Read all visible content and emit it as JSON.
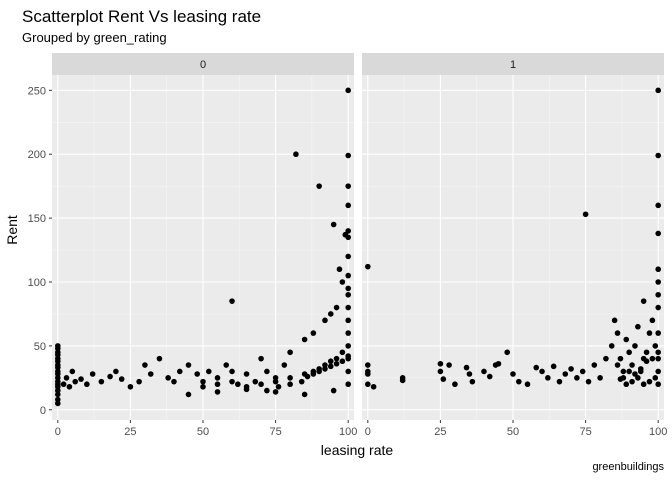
{
  "chart_data": {
    "type": "scatter",
    "title": "Scatterplot Rent Vs leasing rate",
    "subtitle": "Grouped by green_rating",
    "xlabel": "leasing rate",
    "ylabel": "Rent",
    "caption": "greenbuildings",
    "xlim": [
      -2,
      102
    ],
    "ylim": [
      -8,
      262
    ],
    "x_ticks": [
      0,
      25,
      50,
      75,
      100
    ],
    "y_ticks": [
      0,
      50,
      100,
      150,
      200,
      250
    ],
    "x_tick_labels": [
      "0",
      "25",
      "50",
      "75",
      "100"
    ],
    "y_tick_labels": [
      "0",
      "50",
      "100",
      "150",
      "200",
      "250"
    ],
    "grid": true,
    "point_color": "#000000",
    "panel_background": "#ebebeb",
    "strip_background": "#d9d9d9",
    "panels": [
      {
        "label": "0",
        "points": [
          [
            0,
            5
          ],
          [
            0,
            8
          ],
          [
            0,
            12
          ],
          [
            0,
            15
          ],
          [
            0,
            18
          ],
          [
            0,
            20
          ],
          [
            0,
            22
          ],
          [
            0,
            25
          ],
          [
            0,
            28
          ],
          [
            0,
            30
          ],
          [
            0,
            33
          ],
          [
            0,
            35
          ],
          [
            0,
            38
          ],
          [
            0,
            40
          ],
          [
            0,
            43
          ],
          [
            0,
            45
          ],
          [
            0,
            48
          ],
          [
            0,
            50
          ],
          [
            2,
            20
          ],
          [
            3,
            25
          ],
          [
            4,
            18
          ],
          [
            5,
            30
          ],
          [
            6,
            22
          ],
          [
            8,
            24
          ],
          [
            10,
            20
          ],
          [
            12,
            28
          ],
          [
            15,
            22
          ],
          [
            18,
            26
          ],
          [
            20,
            30
          ],
          [
            22,
            24
          ],
          [
            25,
            18
          ],
          [
            28,
            22
          ],
          [
            30,
            35
          ],
          [
            32,
            28
          ],
          [
            35,
            40
          ],
          [
            38,
            25
          ],
          [
            40,
            22
          ],
          [
            42,
            30
          ],
          [
            45,
            35
          ],
          [
            48,
            28
          ],
          [
            50,
            22
          ],
          [
            52,
            30
          ],
          [
            55,
            25
          ],
          [
            58,
            35
          ],
          [
            60,
            30
          ],
          [
            60,
            85
          ],
          [
            62,
            20
          ],
          [
            65,
            28
          ],
          [
            68,
            22
          ],
          [
            70,
            40
          ],
          [
            72,
            30
          ],
          [
            75,
            25
          ],
          [
            78,
            35
          ],
          [
            80,
            45
          ],
          [
            82,
            200
          ],
          [
            85,
            55
          ],
          [
            88,
            60
          ],
          [
            90,
            175
          ],
          [
            92,
            70
          ],
          [
            94,
            75
          ],
          [
            95,
            145
          ],
          [
            96,
            80
          ],
          [
            97,
            110
          ],
          [
            98,
            100
          ],
          [
            99,
            137
          ],
          [
            100,
            250
          ],
          [
            100,
            199
          ],
          [
            100,
            175
          ],
          [
            100,
            160
          ],
          [
            100,
            140
          ],
          [
            100,
            135
          ],
          [
            100,
            120
          ],
          [
            100,
            105
          ],
          [
            100,
            95
          ],
          [
            50,
            18
          ],
          [
            55,
            20
          ],
          [
            60,
            22
          ],
          [
            65,
            18
          ],
          [
            70,
            20
          ],
          [
            75,
            22
          ],
          [
            80,
            25
          ],
          [
            85,
            28
          ],
          [
            88,
            30
          ],
          [
            90,
            32
          ],
          [
            92,
            35
          ],
          [
            94,
            38
          ],
          [
            96,
            40
          ],
          [
            98,
            45
          ],
          [
            100,
            50
          ],
          [
            72,
            15
          ],
          [
            76,
            18
          ],
          [
            80,
            20
          ],
          [
            84,
            22
          ],
          [
            86,
            26
          ],
          [
            88,
            28
          ],
          [
            90,
            30
          ],
          [
            92,
            32
          ],
          [
            94,
            34
          ],
          [
            96,
            36
          ],
          [
            98,
            38
          ],
          [
            100,
            42
          ],
          [
            45,
            12
          ],
          [
            55,
            14
          ],
          [
            65,
            16
          ],
          [
            75,
            14
          ],
          [
            85,
            12
          ],
          [
            95,
            15
          ],
          [
            100,
            20
          ],
          [
            100,
            30
          ],
          [
            100,
            40
          ],
          [
            100,
            60
          ],
          [
            100,
            70
          ],
          [
            100,
            80
          ],
          [
            100,
            90
          ]
        ]
      },
      {
        "label": "1",
        "points": [
          [
            0,
            112
          ],
          [
            0,
            35
          ],
          [
            0,
            30
          ],
          [
            0,
            28
          ],
          [
            0,
            20
          ],
          [
            2,
            18
          ],
          [
            12,
            25
          ],
          [
            12,
            23
          ],
          [
            25,
            36
          ],
          [
            25,
            30
          ],
          [
            26,
            24
          ],
          [
            28,
            35
          ],
          [
            30,
            20
          ],
          [
            34,
            33
          ],
          [
            35,
            28
          ],
          [
            36,
            22
          ],
          [
            40,
            30
          ],
          [
            42,
            26
          ],
          [
            44,
            35
          ],
          [
            45,
            36
          ],
          [
            48,
            45
          ],
          [
            50,
            28
          ],
          [
            52,
            22
          ],
          [
            55,
            20
          ],
          [
            58,
            33
          ],
          [
            60,
            30
          ],
          [
            62,
            25
          ],
          [
            64,
            34
          ],
          [
            66,
            22
          ],
          [
            68,
            28
          ],
          [
            70,
            32
          ],
          [
            72,
            25
          ],
          [
            74,
            30
          ],
          [
            75,
            153
          ],
          [
            76,
            22
          ],
          [
            78,
            35
          ],
          [
            80,
            25
          ],
          [
            82,
            40
          ],
          [
            84,
            50
          ],
          [
            85,
            70
          ],
          [
            86,
            60
          ],
          [
            87,
            40
          ],
          [
            88,
            30
          ],
          [
            89,
            55
          ],
          [
            90,
            45
          ],
          [
            91,
            35
          ],
          [
            92,
            50
          ],
          [
            93,
            65
          ],
          [
            94,
            30
          ],
          [
            95,
            85
          ],
          [
            95,
            40
          ],
          [
            96,
            45
          ],
          [
            97,
            60
          ],
          [
            98,
            70
          ],
          [
            99,
            50
          ],
          [
            100,
            250
          ],
          [
            100,
            199
          ],
          [
            100,
            160
          ],
          [
            100,
            138
          ],
          [
            100,
            110
          ],
          [
            100,
            100
          ],
          [
            100,
            90
          ],
          [
            100,
            80
          ],
          [
            100,
            60
          ],
          [
            100,
            40
          ],
          [
            100,
            30
          ],
          [
            100,
            20
          ],
          [
            86,
            35
          ],
          [
            88,
            25
          ],
          [
            90,
            30
          ],
          [
            92,
            28
          ],
          [
            94,
            32
          ],
          [
            96,
            38
          ],
          [
            98,
            40
          ],
          [
            100,
            45
          ],
          [
            99,
            25
          ],
          [
            97,
            22
          ],
          [
            95,
            20
          ],
          [
            93,
            25
          ],
          [
            91,
            22
          ],
          [
            89,
            20
          ],
          [
            87,
            24
          ]
        ]
      }
    ]
  }
}
